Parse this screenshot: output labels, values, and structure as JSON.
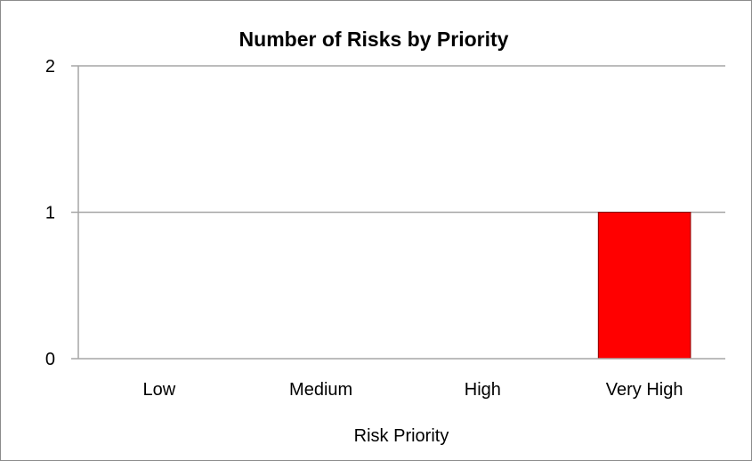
{
  "chart_data": {
    "type": "bar",
    "title": "Number of Risks by Priority",
    "xlabel": "Risk Priority",
    "ylabel": "",
    "categories": [
      "Low",
      "Medium",
      "High",
      "Very High"
    ],
    "values": [
      0,
      0,
      0,
      1
    ],
    "bar_colors": [
      "#ff0000",
      "#ff0000",
      "#ff0000",
      "#ff0000"
    ],
    "bar_border_color": "#8b0000",
    "ylim": [
      0,
      2
    ],
    "yticks": [
      "0",
      "1",
      "2"
    ],
    "grid": true,
    "gridline_color": "#a6a6a6",
    "legend": "none"
  }
}
